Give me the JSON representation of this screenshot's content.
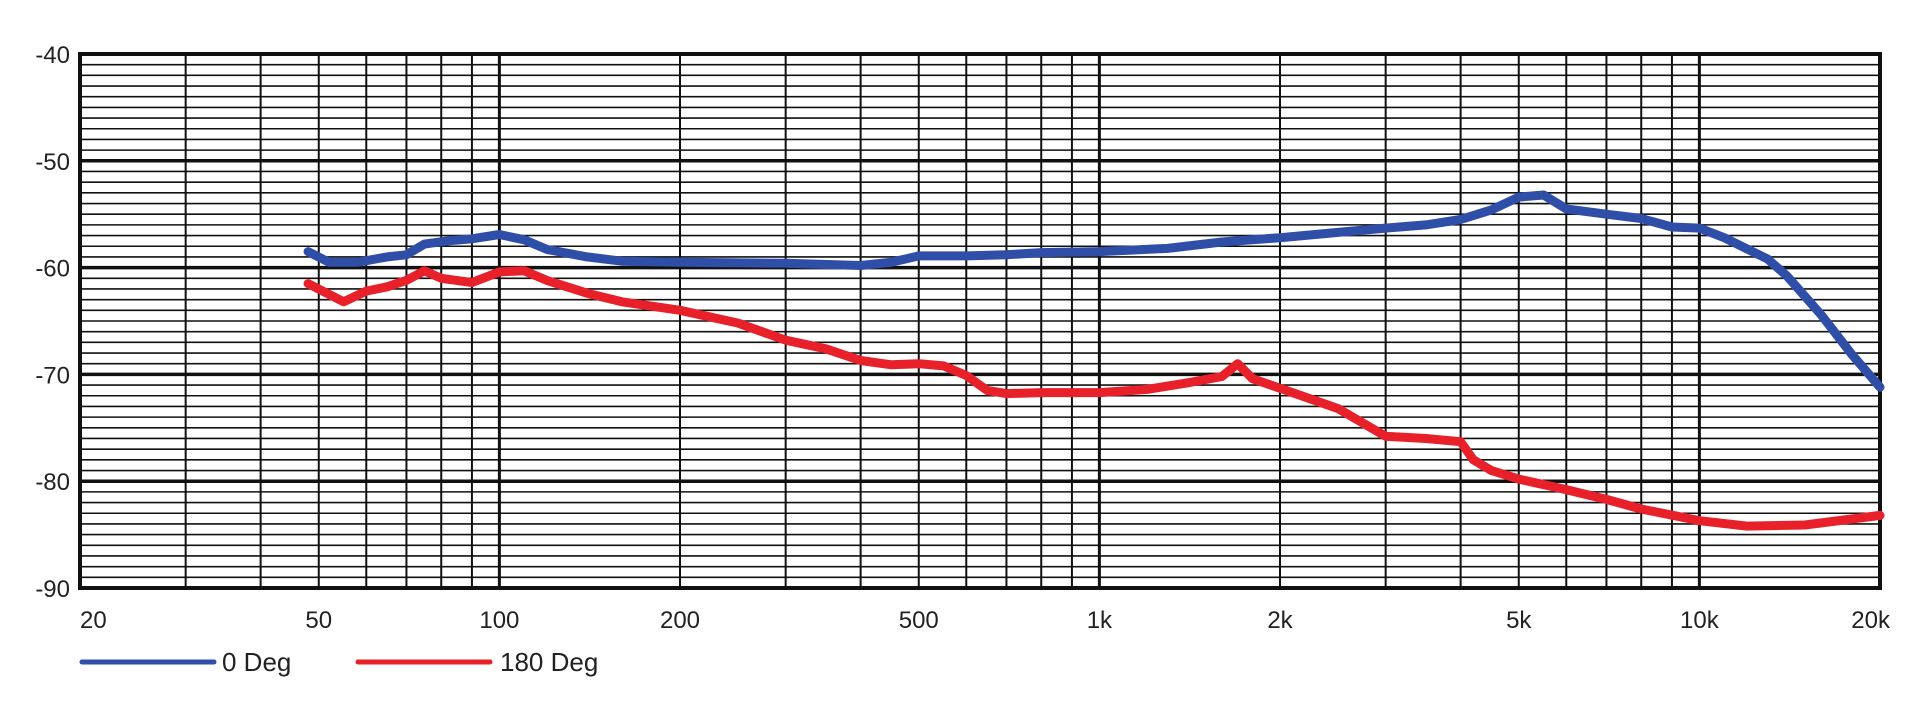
{
  "chart_data": {
    "type": "line",
    "x_scale": "log",
    "xlim": [
      20,
      20000
    ],
    "ylim": [
      -90,
      -40
    ],
    "grid": true,
    "legend_position": "bottom-left",
    "x_ticks": [
      {
        "value": 20,
        "label": "20"
      },
      {
        "value": 50,
        "label": "50"
      },
      {
        "value": 100,
        "label": "100"
      },
      {
        "value": 200,
        "label": "200"
      },
      {
        "value": 500,
        "label": "500"
      },
      {
        "value": 1000,
        "label": "1k"
      },
      {
        "value": 2000,
        "label": "2k"
      },
      {
        "value": 5000,
        "label": "5k"
      },
      {
        "value": 10000,
        "label": "10k"
      },
      {
        "value": 20000,
        "label": "20k"
      }
    ],
    "y_ticks": [
      {
        "value": -40,
        "label": "-40"
      },
      {
        "value": -50,
        "label": "-50"
      },
      {
        "value": -60,
        "label": "-60"
      },
      {
        "value": -70,
        "label": "-70"
      },
      {
        "value": -80,
        "label": "-80"
      },
      {
        "value": -90,
        "label": "-90"
      }
    ],
    "series": [
      {
        "name": "0 Deg",
        "color": "#2f4ea8",
        "points": [
          [
            48,
            -58.5
          ],
          [
            52,
            -59.5
          ],
          [
            58,
            -59.5
          ],
          [
            65,
            -59
          ],
          [
            70,
            -58.8
          ],
          [
            75,
            -57.8
          ],
          [
            82,
            -57.5
          ],
          [
            90,
            -57.3
          ],
          [
            100,
            -56.9
          ],
          [
            110,
            -57.4
          ],
          [
            120,
            -58.3
          ],
          [
            140,
            -59
          ],
          [
            160,
            -59.4
          ],
          [
            200,
            -59.5
          ],
          [
            300,
            -59.6
          ],
          [
            400,
            -59.8
          ],
          [
            450,
            -59.5
          ],
          [
            500,
            -58.9
          ],
          [
            600,
            -58.9
          ],
          [
            700,
            -58.8
          ],
          [
            800,
            -58.6
          ],
          [
            1000,
            -58.5
          ],
          [
            1300,
            -58.2
          ],
          [
            1600,
            -57.6
          ],
          [
            2000,
            -57.2
          ],
          [
            2500,
            -56.7
          ],
          [
            3000,
            -56.3
          ],
          [
            3500,
            -56
          ],
          [
            4000,
            -55.5
          ],
          [
            4500,
            -54.6
          ],
          [
            5000,
            -53.4
          ],
          [
            5500,
            -53.2
          ],
          [
            6000,
            -54.5
          ],
          [
            7000,
            -55
          ],
          [
            8000,
            -55.4
          ],
          [
            9000,
            -56.2
          ],
          [
            10000,
            -56.3
          ],
          [
            11000,
            -57.2
          ],
          [
            13000,
            -59.2
          ],
          [
            14000,
            -60.8
          ],
          [
            16000,
            -64.5
          ],
          [
            18000,
            -68.2
          ],
          [
            20000,
            -71.2
          ]
        ]
      },
      {
        "name": "180 Deg",
        "color": "#e8202a",
        "points": [
          [
            48,
            -61.5
          ],
          [
            55,
            -63.2
          ],
          [
            60,
            -62.2
          ],
          [
            65,
            -61.8
          ],
          [
            70,
            -61.2
          ],
          [
            75,
            -60.3
          ],
          [
            80,
            -61
          ],
          [
            90,
            -61.4
          ],
          [
            100,
            -60.4
          ],
          [
            110,
            -60.3
          ],
          [
            120,
            -61.2
          ],
          [
            140,
            -62.4
          ],
          [
            160,
            -63.2
          ],
          [
            200,
            -64
          ],
          [
            250,
            -65.2
          ],
          [
            300,
            -66.8
          ],
          [
            350,
            -67.6
          ],
          [
            400,
            -68.7
          ],
          [
            450,
            -69.1
          ],
          [
            500,
            -69
          ],
          [
            550,
            -69.2
          ],
          [
            600,
            -70.1
          ],
          [
            650,
            -71.5
          ],
          [
            700,
            -71.8
          ],
          [
            800,
            -71.7
          ],
          [
            1000,
            -71.7
          ],
          [
            1200,
            -71.4
          ],
          [
            1400,
            -70.8
          ],
          [
            1600,
            -70.2
          ],
          [
            1700,
            -69
          ],
          [
            1800,
            -70.4
          ],
          [
            2000,
            -71.3
          ],
          [
            2500,
            -73.2
          ],
          [
            3000,
            -75.8
          ],
          [
            3500,
            -76
          ],
          [
            4000,
            -76.3
          ],
          [
            4200,
            -78
          ],
          [
            4500,
            -79
          ],
          [
            5000,
            -79.8
          ],
          [
            6000,
            -80.8
          ],
          [
            7000,
            -81.7
          ],
          [
            8000,
            -82.6
          ],
          [
            10000,
            -83.7
          ],
          [
            12000,
            -84.2
          ],
          [
            15000,
            -84.1
          ],
          [
            20000,
            -83.2
          ]
        ]
      }
    ]
  }
}
